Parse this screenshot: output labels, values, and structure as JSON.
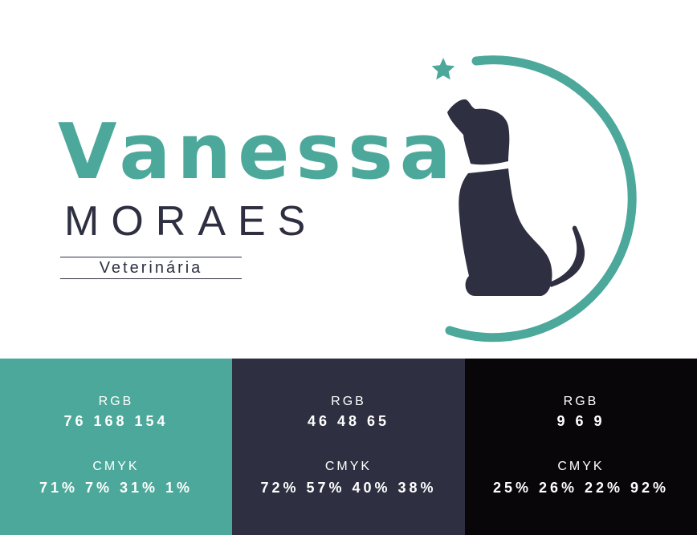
{
  "brand": {
    "first_name": "Vanessa",
    "last_name": "MORAES",
    "role": "Veterinária"
  },
  "emblem": {
    "icons": [
      "star-icon",
      "dog-silhouette-icon"
    ]
  },
  "palette": {
    "swatches": [
      {
        "color": "#4ca89a",
        "rgb_label": "RGB",
        "rgb_value": "76 168 154",
        "cmyk_label": "CMYK",
        "cmyk_value": "71% 7% 31% 1%"
      },
      {
        "color": "#2e3041",
        "rgb_label": "RGB",
        "rgb_value": "46 48 65",
        "cmyk_label": "CMYK",
        "cmyk_value": "72% 57% 40% 38%"
      },
      {
        "color": "#090609",
        "rgb_label": "RGB",
        "rgb_value": "9 6 9",
        "cmyk_label": "CMYK",
        "cmyk_value": "25% 26% 22% 92%"
      }
    ]
  }
}
